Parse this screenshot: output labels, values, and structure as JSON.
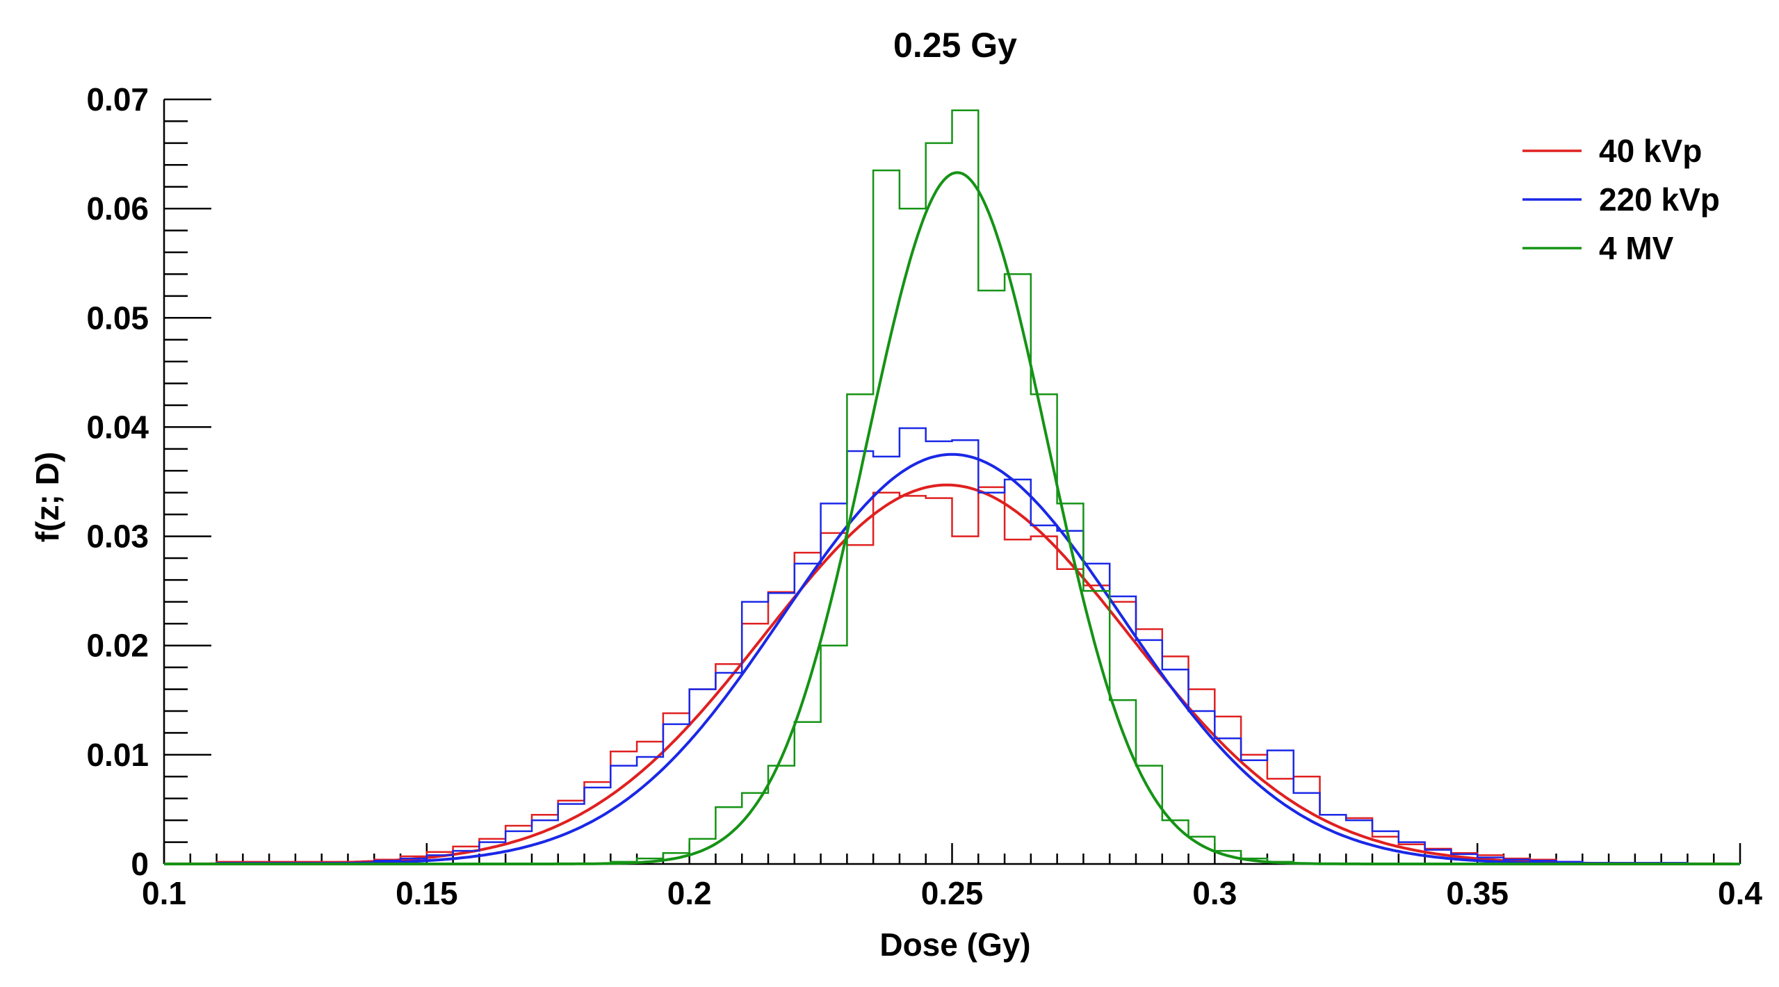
{
  "chart_data": {
    "type": "line",
    "title": "0.25 Gy",
    "xlabel": "Dose (Gy)",
    "ylabel": "f(z; D)",
    "xlim": [
      0.1,
      0.4
    ],
    "ylim": [
      0,
      0.07
    ],
    "x_ticks": [
      0.1,
      0.15,
      0.2,
      0.25,
      0.3,
      0.35,
      0.4
    ],
    "x_tick_labels": [
      "0.1",
      "0.15",
      "0.2",
      "0.25",
      "0.3",
      "0.35",
      "0.4"
    ],
    "y_ticks": [
      0,
      0.01,
      0.02,
      0.03,
      0.04,
      0.05,
      0.06,
      0.07
    ],
    "y_tick_labels": [
      "0",
      "0.01",
      "0.02",
      "0.03",
      "0.04",
      "0.05",
      "0.06",
      "0.07"
    ],
    "grid": false,
    "legend_position": "top-right",
    "series": [
      {
        "name": "40 kVp",
        "color": "#e02020",
        "fit": {
          "distribution": "gaussian",
          "mean": 0.249,
          "sigma": 0.0346,
          "peak": 0.0347
        },
        "hist_edges": [
          0.11,
          0.14,
          0.145,
          0.15,
          0.155,
          0.16,
          0.165,
          0.17,
          0.175,
          0.18,
          0.185,
          0.19,
          0.195,
          0.2,
          0.205,
          0.21,
          0.215,
          0.22,
          0.225,
          0.23,
          0.235,
          0.24,
          0.245,
          0.25,
          0.255,
          0.26,
          0.265,
          0.27,
          0.275,
          0.28,
          0.285,
          0.29,
          0.295,
          0.3,
          0.305,
          0.31,
          0.315,
          0.32,
          0.325,
          0.33,
          0.335,
          0.34,
          0.345,
          0.35,
          0.355,
          0.36,
          0.365,
          0.37,
          0.39
        ],
        "hist_values": [
          0.0002,
          0.0004,
          0.0007,
          0.0011,
          0.0016,
          0.0023,
          0.0035,
          0.0045,
          0.0058,
          0.0075,
          0.0103,
          0.0112,
          0.0138,
          0.016,
          0.0183,
          0.022,
          0.0249,
          0.0285,
          0.0303,
          0.0292,
          0.034,
          0.0337,
          0.0335,
          0.03,
          0.0345,
          0.0297,
          0.03,
          0.027,
          0.0255,
          0.024,
          0.0215,
          0.019,
          0.016,
          0.0135,
          0.01,
          0.0078,
          0.008,
          0.0045,
          0.0042,
          0.0025,
          0.0018,
          0.0014,
          0.001,
          0.0008,
          0.0005,
          0.0004,
          0.0002,
          0.0001
        ]
      },
      {
        "name": "220 kVp",
        "color": "#1a28e6",
        "fit": {
          "distribution": "gaussian",
          "mean": 0.25,
          "sigma": 0.0322,
          "peak": 0.0375
        },
        "hist_edges": [
          0.11,
          0.14,
          0.145,
          0.15,
          0.155,
          0.16,
          0.165,
          0.17,
          0.175,
          0.18,
          0.185,
          0.19,
          0.195,
          0.2,
          0.205,
          0.21,
          0.215,
          0.22,
          0.225,
          0.23,
          0.235,
          0.24,
          0.245,
          0.25,
          0.255,
          0.26,
          0.265,
          0.27,
          0.275,
          0.28,
          0.285,
          0.29,
          0.295,
          0.3,
          0.305,
          0.31,
          0.315,
          0.32,
          0.325,
          0.33,
          0.335,
          0.34,
          0.345,
          0.35,
          0.355,
          0.36,
          0.365,
          0.37,
          0.39
        ],
        "hist_values": [
          0.0001,
          0.0003,
          0.0005,
          0.0008,
          0.0012,
          0.002,
          0.003,
          0.004,
          0.0055,
          0.007,
          0.009,
          0.0098,
          0.0128,
          0.016,
          0.0175,
          0.024,
          0.0248,
          0.0275,
          0.033,
          0.0378,
          0.0373,
          0.0399,
          0.0387,
          0.0388,
          0.034,
          0.0352,
          0.031,
          0.0305,
          0.0275,
          0.0245,
          0.0205,
          0.0178,
          0.014,
          0.0115,
          0.0095,
          0.0104,
          0.0065,
          0.0045,
          0.004,
          0.003,
          0.002,
          0.0013,
          0.0009,
          0.0006,
          0.0004,
          0.0003,
          0.0002,
          0.0001
        ]
      },
      {
        "name": "4 MV",
        "color": "#159315",
        "fit": {
          "distribution": "gaussian",
          "mean": 0.251,
          "sigma": 0.0173,
          "peak": 0.0633
        },
        "hist_edges": [
          0.185,
          0.19,
          0.195,
          0.2,
          0.205,
          0.21,
          0.215,
          0.22,
          0.225,
          0.23,
          0.235,
          0.24,
          0.245,
          0.25,
          0.255,
          0.26,
          0.265,
          0.27,
          0.275,
          0.28,
          0.285,
          0.29,
          0.295,
          0.3,
          0.305,
          0.31,
          0.315
        ],
        "hist_values": [
          0.0002,
          0.0005,
          0.001,
          0.0023,
          0.0052,
          0.0065,
          0.009,
          0.013,
          0.02,
          0.043,
          0.0635,
          0.06,
          0.066,
          0.069,
          0.0525,
          0.054,
          0.043,
          0.033,
          0.025,
          0.015,
          0.009,
          0.004,
          0.0025,
          0.0012,
          0.0005,
          0.0002
        ]
      }
    ]
  }
}
